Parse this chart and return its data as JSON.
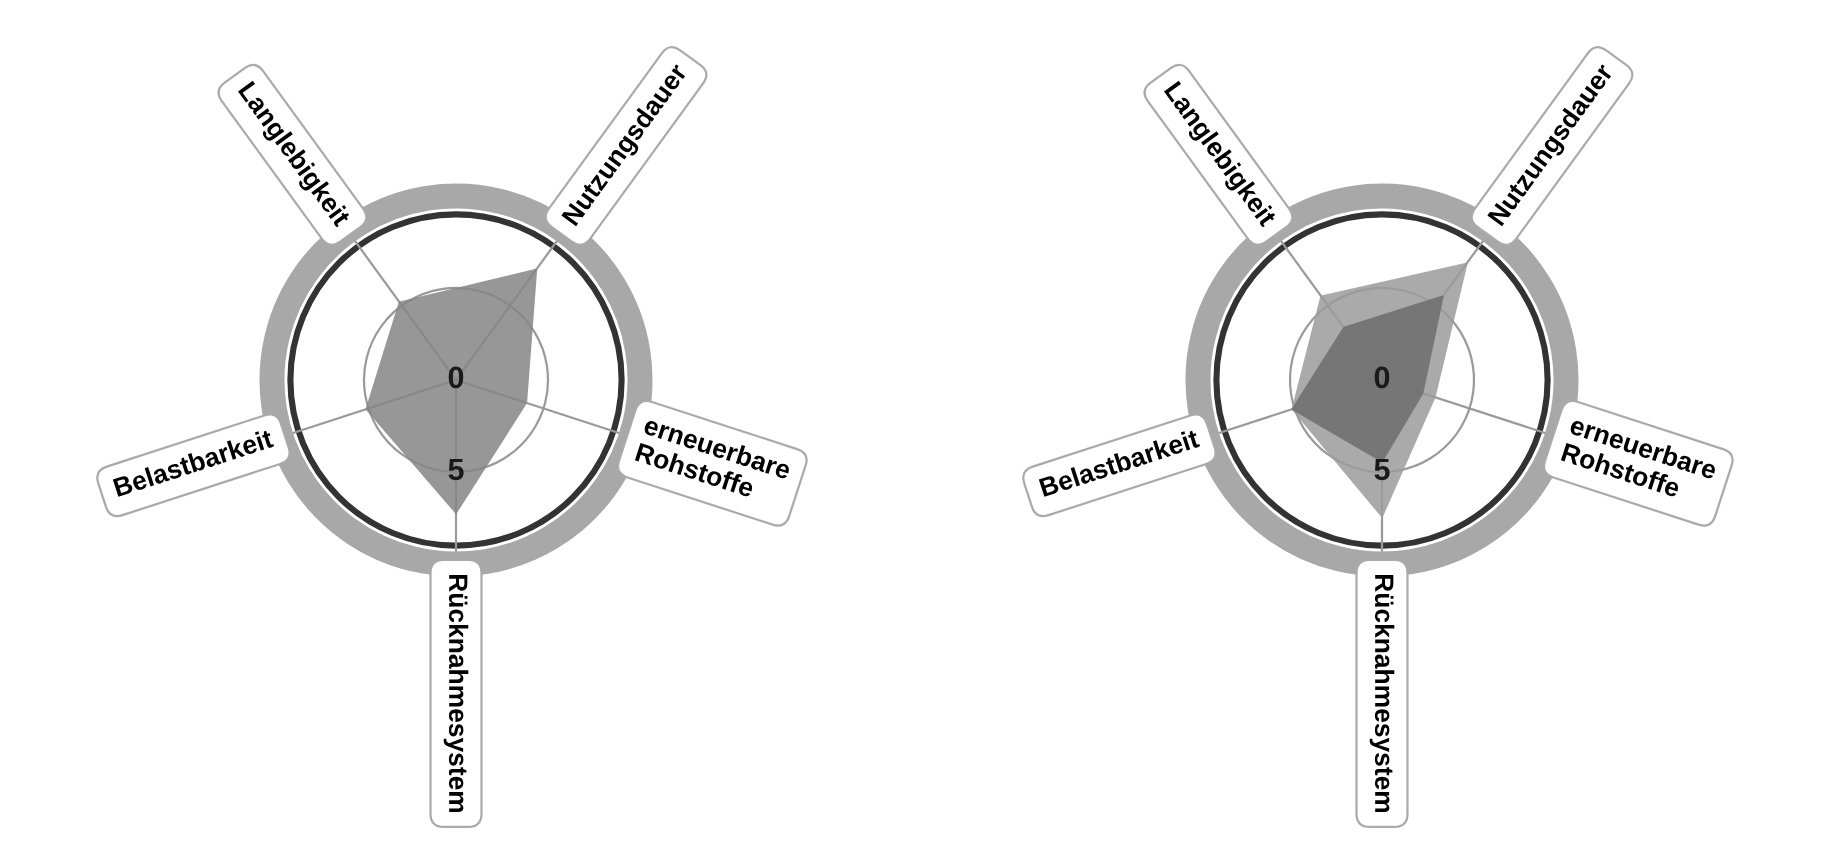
{
  "chart_data": [
    {
      "type": "radar",
      "categories": [
        "Nutzungsdauer",
        "erneuerbare Rohstoffe",
        "Rücknahmesystem",
        "Belastbarkeit",
        "Langlebigkeit"
      ],
      "ylim": [
        0,
        10
      ],
      "yticks": [
        0,
        5
      ],
      "grid": true,
      "legend": false,
      "series": [
        {
          "color": "#858585",
          "values": [
            7.4,
            4,
            7.2,
            5.1,
            5.2
          ]
        }
      ]
    },
    {
      "type": "radar",
      "categories": [
        "Nutzungsdauer",
        "erneuerbare Rohstoffe",
        "Rücknahmesystem",
        "Belastbarkeit",
        "Langlebigkeit"
      ],
      "ylim": [
        0,
        10
      ],
      "yticks": [
        0,
        5
      ],
      "grid": true,
      "legend": false,
      "series": [
        {
          "color": "#9c9c9c",
          "values": [
            7.8,
            3,
            7.4,
            5.1,
            5.6
          ]
        },
        {
          "color": "#6e6e6e",
          "values": [
            5.6,
            2.3,
            4.4,
            5.1,
            3.5
          ]
        }
      ]
    }
  ]
}
